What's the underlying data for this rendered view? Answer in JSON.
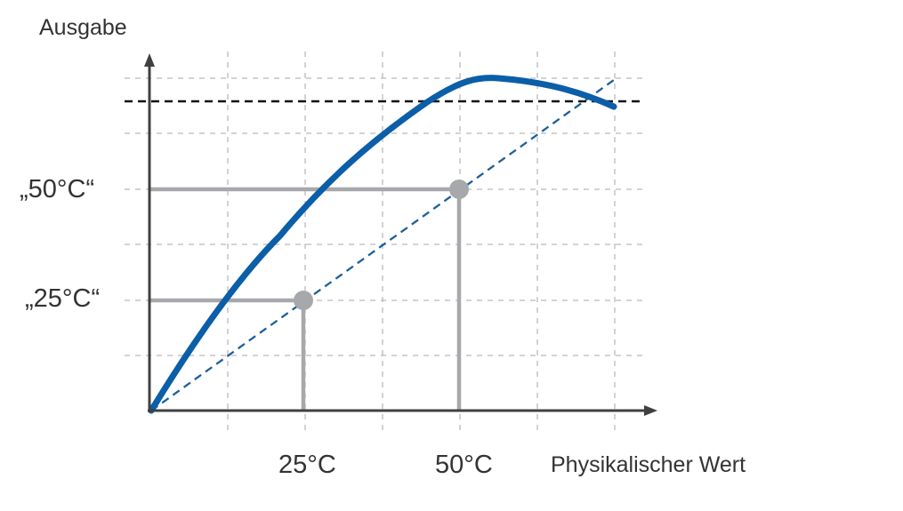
{
  "diagram": {
    "y_axis_title": "Ausgabe",
    "x_axis_title": "Physikalischer  Wert",
    "y_tick_labels": [
      "„50°C“",
      "„25°C“"
    ],
    "x_tick_labels": [
      "25°C",
      "50°C"
    ],
    "colors": {
      "measured_curve": "#0b5ea8",
      "ideal_line": "#1f5f9a",
      "limit_line": "#111111",
      "guide_lines": "#a6a8ab",
      "grid": "#b9b9b9",
      "axes": "#404040"
    },
    "elements": [
      "measured-characteristic-curve",
      "ideal-linear-characteristic",
      "saturation-limit-line",
      "reference-point-25",
      "reference-point-50"
    ]
  }
}
